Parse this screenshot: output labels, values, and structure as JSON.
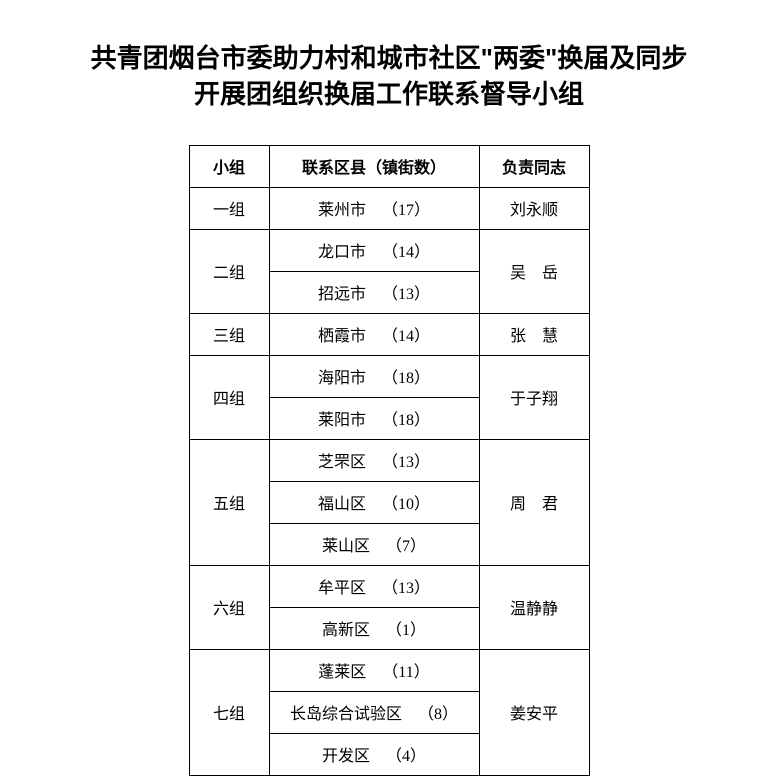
{
  "title": "共青团烟台市委助力村和城市社区\"两委\"换届及同步开展团组织换届工作联系督导小组",
  "headers": {
    "group": "小组",
    "area": "联系区县（镇街数）",
    "person": "负责同志"
  },
  "groups": [
    {
      "name": "一组",
      "person": "刘永顺",
      "person_spaced": false,
      "areas": [
        {
          "area": "莱州市",
          "num": "（17）"
        }
      ]
    },
    {
      "name": "二组",
      "person": "吴　岳",
      "person_spaced": false,
      "areas": [
        {
          "area": "龙口市",
          "num": "（14）"
        },
        {
          "area": "招远市",
          "num": "（13）"
        }
      ]
    },
    {
      "name": "三组",
      "person": "张　慧",
      "person_spaced": false,
      "areas": [
        {
          "area": "栖霞市",
          "num": "（14）"
        }
      ]
    },
    {
      "name": "四组",
      "person": "于子翔",
      "person_spaced": false,
      "areas": [
        {
          "area": "海阳市",
          "num": "（18）"
        },
        {
          "area": "莱阳市",
          "num": "（18）"
        }
      ]
    },
    {
      "name": "五组",
      "person": "周　君",
      "person_spaced": false,
      "areas": [
        {
          "area": "芝罘区",
          "num": "（13）"
        },
        {
          "area": "福山区",
          "num": "（10）"
        },
        {
          "area": "莱山区",
          "num": "（7）"
        }
      ]
    },
    {
      "name": "六组",
      "person": "温静静",
      "person_spaced": false,
      "areas": [
        {
          "area": "牟平区",
          "num": "（13）"
        },
        {
          "area": "高新区",
          "num": "（1）"
        }
      ]
    },
    {
      "name": "七组",
      "person": "姜安平",
      "person_spaced": false,
      "areas": [
        {
          "area": "蓬莱区",
          "num": "（11）"
        },
        {
          "area": "长岛综合试验区",
          "num": "（8）"
        },
        {
          "area": "开发区",
          "num": "（4）"
        }
      ]
    }
  ]
}
